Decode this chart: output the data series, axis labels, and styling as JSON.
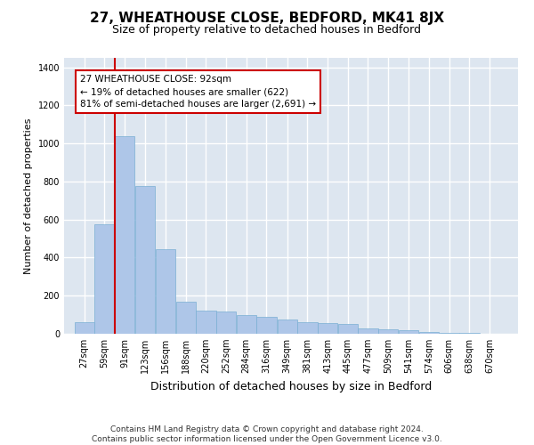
{
  "title1": "27, WHEATHOUSE CLOSE, BEDFORD, MK41 8JX",
  "title2": "Size of property relative to detached houses in Bedford",
  "xlabel": "Distribution of detached houses by size in Bedford",
  "ylabel": "Number of detached properties",
  "footer1": "Contains HM Land Registry data © Crown copyright and database right 2024.",
  "footer2": "Contains public sector information licensed under the Open Government Licence v3.0.",
  "annotation_line1": "27 WHEATHOUSE CLOSE: 92sqm",
  "annotation_line2": "← 19% of detached houses are smaller (622)",
  "annotation_line3": "81% of semi-detached houses are larger (2,691) →",
  "bar_color": "#aec6e8",
  "bar_edge_color": "#7aafd4",
  "property_line_color": "#cc0000",
  "annotation_box_color": "#cc0000",
  "background_color": "#dde6f0",
  "grid_color": "#ffffff",
  "categories": [
    "27sqm",
    "59sqm",
    "91sqm",
    "123sqm",
    "156sqm",
    "188sqm",
    "220sqm",
    "252sqm",
    "284sqm",
    "316sqm",
    "349sqm",
    "381sqm",
    "413sqm",
    "445sqm",
    "477sqm",
    "509sqm",
    "541sqm",
    "574sqm",
    "606sqm",
    "638sqm",
    "670sqm"
  ],
  "bin_edges": [
    27,
    59,
    91,
    123,
    156,
    188,
    220,
    252,
    284,
    316,
    349,
    381,
    413,
    445,
    477,
    509,
    541,
    574,
    606,
    638,
    670
  ],
  "values": [
    60,
    575,
    1040,
    775,
    445,
    170,
    120,
    115,
    100,
    88,
    75,
    60,
    55,
    50,
    30,
    25,
    20,
    10,
    5,
    3,
    2
  ],
  "ylim": [
    0,
    1450
  ],
  "yticks": [
    0,
    200,
    400,
    600,
    800,
    1000,
    1200,
    1400
  ],
  "title1_fontsize": 11,
  "title2_fontsize": 9,
  "annotation_fontsize": 7.5,
  "tick_fontsize": 7,
  "xlabel_fontsize": 9,
  "ylabel_fontsize": 8,
  "footer_fontsize": 6.5
}
